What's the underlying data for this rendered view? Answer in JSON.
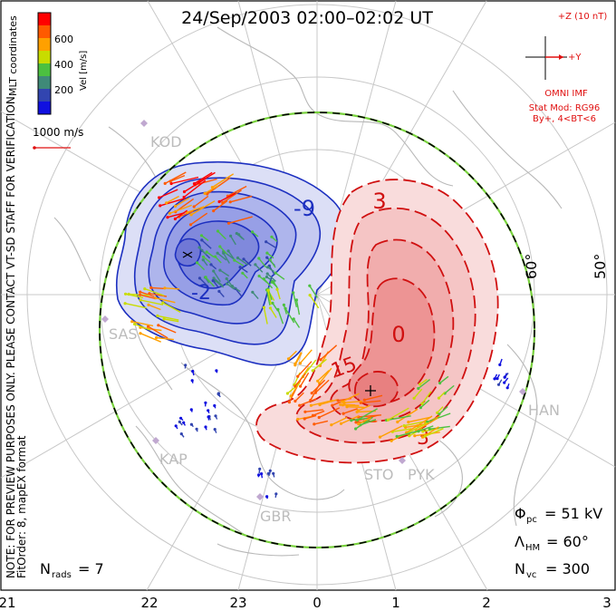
{
  "title": "24/Sep/2003 02:00–02:02 UT",
  "coord_label": "MLT coordinates",
  "colorbar": {
    "label": "Vel [m/s]",
    "ticks": [
      "600",
      "400",
      "200"
    ],
    "colors": [
      "#ff0000",
      "#ff5a00",
      "#ffa000",
      "#c8dc00",
      "#4cc040",
      "#3f8a78",
      "#3245b0",
      "#1010e0"
    ]
  },
  "scale_vector_label": "1000 m/s",
  "imf": {
    "z_label": "+Z (10 nT)",
    "y_label": "+Y",
    "source": "OMNI IMF",
    "model_line1": "Stat Mod: RG96",
    "model_line2": "By+, 4<BT<6"
  },
  "side_notice": "NOTE: FOR PREVIEW PURPOSES ONLY. PLEASE CONTACT VT-SD STAFF FOR VERIFICATION.",
  "fit_order": "FitOrder: 8, mapEX format",
  "stations": [
    "KOD",
    "SAS",
    "KAP",
    "GBR",
    "STO",
    "PYK",
    "HAN"
  ],
  "lat_labels": [
    "60°",
    "50°"
  ],
  "contours": {
    "negative": [
      "-9",
      "-2"
    ],
    "positive": [
      "3",
      "0",
      "15",
      "3"
    ]
  },
  "stats": {
    "phi_symbol": "Φ",
    "phi_sub": "pc",
    "phi_value": "= 51 kV",
    "lambda_symbol": "Λ",
    "lambda_sub": "HM",
    "lambda_value": "= 60°",
    "n_symbol": "N",
    "n_sub": "vc",
    "n_value": "= 300",
    "nrads_symbol": "N",
    "nrads_sub": "rads",
    "nrads_value": "= 7"
  },
  "mlt_labels": [
    "21",
    "22",
    "23",
    "0",
    "1",
    "2",
    "3"
  ],
  "colors": {
    "negative_fill": "#9fa6e8",
    "negative_line": "#1c2fc0",
    "positive_fill": "#f2a0a0",
    "positive_line": "#d01010",
    "boundary_green": "#78d23c",
    "grid": "#c8c8c8",
    "coast": "#b8b8b8",
    "imf_red": "#e01010"
  }
}
